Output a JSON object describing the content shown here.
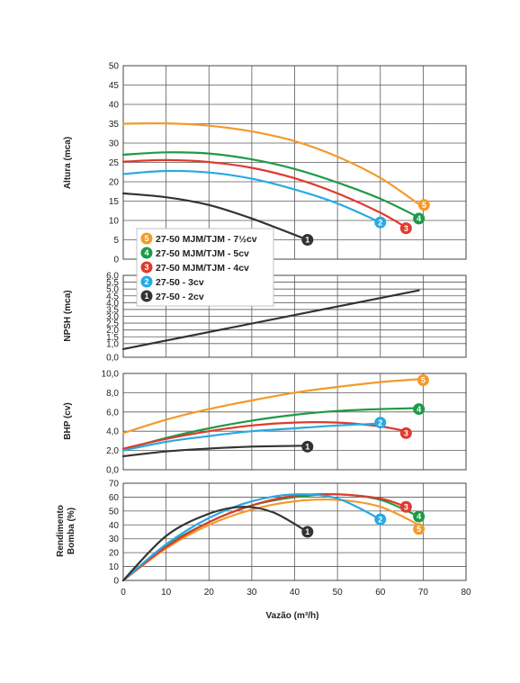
{
  "chart_data": {
    "type": "line",
    "xlabel": "Vazão (m³/h)",
    "x_ticks": [
      "0",
      "10",
      "20",
      "30",
      "40",
      "50",
      "60",
      "70",
      "80"
    ],
    "xlim": [
      0,
      80
    ],
    "grid": true,
    "legend_position": "middle-left",
    "colors": {
      "5": "#F39A2B",
      "4": "#1E9A46",
      "3": "#E03A2E",
      "2": "#27AAE1",
      "1": "#333333"
    },
    "legend": [
      {
        "id": "5",
        "label": "27-50 MJM/TJM - 7½cv"
      },
      {
        "id": "4",
        "label": "27-50 MJM/TJM - 5cv"
      },
      {
        "id": "3",
        "label": "27-50 MJM/TJM - 4cv"
      },
      {
        "id": "2",
        "label": "27-50 - 3cv"
      },
      {
        "id": "1",
        "label": "27-50 - 2cv"
      }
    ],
    "panels": [
      {
        "ylabel": "Altura (mca)",
        "ylim": [
          0,
          50
        ],
        "y_ticks": [
          "0",
          "5",
          "10",
          "15",
          "20",
          "25",
          "30",
          "35",
          "40",
          "45",
          "50"
        ],
        "series": [
          {
            "id": "5",
            "x": [
              0,
              10,
              20,
              30,
              40,
              50,
              60,
              69
            ],
            "y": [
              35,
              35.1,
              34.5,
              33,
              30.5,
              26.5,
              21,
              14.2
            ]
          },
          {
            "id": "4",
            "x": [
              0,
              10,
              20,
              30,
              40,
              50,
              60,
              69
            ],
            "y": [
              27,
              27.6,
              27.3,
              25.8,
              23.3,
              19.8,
              15.6,
              10.8
            ]
          },
          {
            "id": "3",
            "x": [
              0,
              10,
              20,
              30,
              40,
              50,
              60,
              66
            ],
            "y": [
              25.2,
              25.6,
              25.1,
              23.6,
              20.9,
              17,
              12,
              8.2
            ]
          },
          {
            "id": "2",
            "x": [
              0,
              10,
              20,
              30,
              40,
              50,
              60
            ],
            "y": [
              22,
              22.8,
              22.4,
              20.8,
              18,
              14.4,
              9.5
            ]
          },
          {
            "id": "1",
            "x": [
              0,
              10,
              20,
              30,
              43
            ],
            "y": [
              17,
              16,
              14,
              10.5,
              5
            ]
          }
        ],
        "end_badges": [
          {
            "id": "5",
            "x": 70,
            "y": 14
          },
          {
            "id": "4",
            "x": 69,
            "y": 10.5
          },
          {
            "id": "3",
            "x": 66,
            "y": 8
          },
          {
            "id": "2",
            "x": 60,
            "y": 9.5
          },
          {
            "id": "1",
            "x": 43,
            "y": 5
          }
        ]
      },
      {
        "ylabel": "NPSH (mca)",
        "ylim": [
          0,
          6
        ],
        "y_ticks": [
          "0,0",
          "1,0",
          "1,5",
          "2,0",
          "2,5",
          "3,0",
          "3,5",
          "4,0",
          "4,5",
          "5,0",
          "5,5",
          "6,0"
        ],
        "series": [
          {
            "id": "1",
            "x": [
              0,
              69
            ],
            "y": [
              0.6,
              4.9
            ]
          }
        ]
      },
      {
        "ylabel": "BHP (cv)",
        "ylim": [
          0,
          10
        ],
        "y_ticks": [
          "0,0",
          "2,0",
          "4,0",
          "6,0",
          "8,0",
          "10,0"
        ],
        "series": [
          {
            "id": "5",
            "x": [
              0,
              10,
              20,
              30,
              40,
              50,
              60,
              69
            ],
            "y": [
              3.8,
              5.2,
              6.3,
              7.2,
              8,
              8.6,
              9.1,
              9.4
            ]
          },
          {
            "id": "4",
            "x": [
              0,
              10,
              20,
              30,
              40,
              50,
              60,
              69
            ],
            "y": [
              2.1,
              3.3,
              4.3,
              5.1,
              5.7,
              6.1,
              6.3,
              6.4
            ]
          },
          {
            "id": "3",
            "x": [
              0,
              10,
              20,
              30,
              40,
              50,
              60,
              66
            ],
            "y": [
              2.2,
              3.2,
              4,
              4.6,
              4.9,
              4.9,
              4.5,
              4
            ]
          },
          {
            "id": "2",
            "x": [
              0,
              10,
              20,
              30,
              40,
              50,
              60
            ],
            "y": [
              2,
              2.9,
              3.5,
              4,
              4.3,
              4.6,
              4.8
            ]
          },
          {
            "id": "1",
            "x": [
              0,
              10,
              20,
              30,
              43
            ],
            "y": [
              1.4,
              1.9,
              2.2,
              2.4,
              2.5
            ]
          }
        ],
        "end_badges": [
          {
            "id": "5",
            "x": 70,
            "y": 9.3
          },
          {
            "id": "4",
            "x": 69,
            "y": 6.3
          },
          {
            "id": "3",
            "x": 66,
            "y": 3.8
          },
          {
            "id": "2",
            "x": 60,
            "y": 4.9
          },
          {
            "id": "1",
            "x": 43,
            "y": 2.4
          }
        ]
      },
      {
        "ylabel": "Rendimento Bomba (%)",
        "ylim": [
          0,
          70
        ],
        "y_ticks": [
          "0",
          "10",
          "20",
          "30",
          "40",
          "50",
          "60",
          "70"
        ],
        "series": [
          {
            "id": "5",
            "x": [
              0,
              10,
              20,
              30,
              40,
              50,
              60,
              69
            ],
            "y": [
              0,
              23,
              40,
              51,
              57,
              58,
              53,
              40
            ]
          },
          {
            "id": "4",
            "x": [
              0,
              10,
              20,
              30,
              40,
              50,
              60,
              69
            ],
            "y": [
              0,
              25,
              42,
              54,
              60,
              62,
              58,
              46
            ]
          },
          {
            "id": "3",
            "x": [
              0,
              10,
              20,
              30,
              40,
              50,
              60,
              66
            ],
            "y": [
              0,
              24,
              42,
              54,
              61,
              62,
              59,
              53
            ]
          },
          {
            "id": "2",
            "x": [
              0,
              10,
              20,
              30,
              40,
              50,
              60
            ],
            "y": [
              0,
              26,
              45,
              57,
              62,
              59,
              44
            ]
          },
          {
            "id": "1",
            "x": [
              0,
              10,
              20,
              28,
              35,
              43
            ],
            "y": [
              0,
              32,
              48,
              53,
              49,
              35
            ]
          }
        ],
        "end_badges": [
          {
            "id": "5",
            "x": 69,
            "y": 37
          },
          {
            "id": "4",
            "x": 69,
            "y": 46
          },
          {
            "id": "3",
            "x": 66,
            "y": 53
          },
          {
            "id": "2",
            "x": 60,
            "y": 44
          },
          {
            "id": "1",
            "x": 43,
            "y": 35
          }
        ]
      }
    ]
  }
}
